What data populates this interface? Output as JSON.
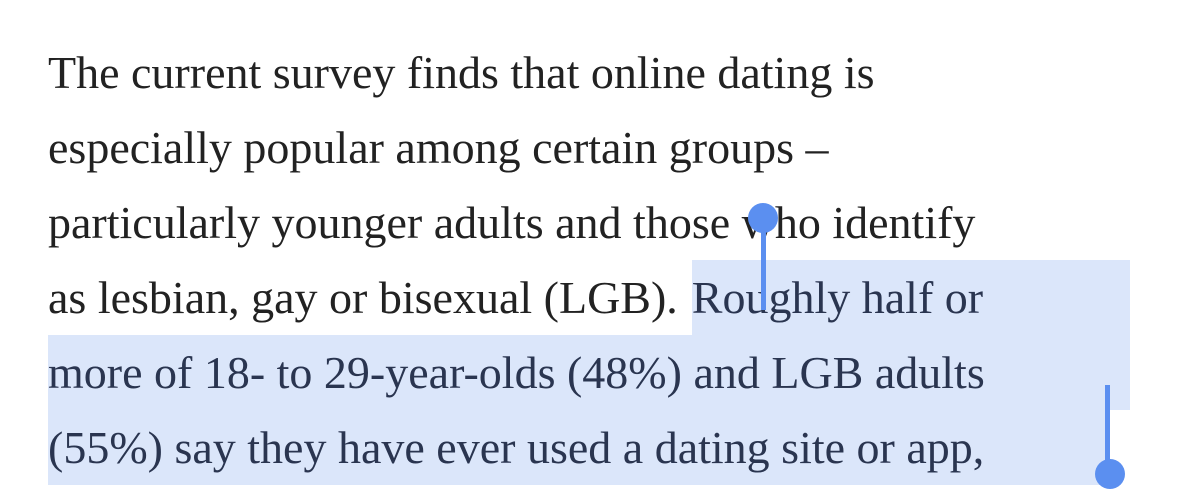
{
  "paragraph": {
    "lines": [
      {
        "text": "The current survey finds that online dating is"
      },
      {
        "text": "especially popular among certain groups –"
      },
      {
        "text": "particularly younger adults and those who identify"
      },
      {
        "text": "as lesbian, gay or bisexual (LGB).",
        "selected": "Roughly half or"
      },
      {
        "selected": "more of 18- to 29-year-olds (48%) and LGB adults"
      },
      {
        "selected": "(55%) say they have ever used a dating site or app,"
      }
    ]
  }
}
